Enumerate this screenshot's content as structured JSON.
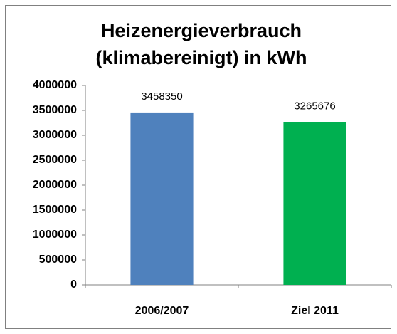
{
  "chart_data": {
    "type": "bar",
    "title": [
      "Heizenergieverbrauch",
      "(klimabereinigt) in kWh"
    ],
    "categories": [
      "2006/2007",
      "Ziel 2011"
    ],
    "values": [
      3458350,
      3265676
    ],
    "colors": [
      "#4f81bd",
      "#00b050"
    ],
    "ylim": [
      0,
      4000000
    ],
    "yticks": [
      0,
      500000,
      1000000,
      1500000,
      2000000,
      2500000,
      3000000,
      3500000,
      4000000
    ],
    "grid": false
  }
}
